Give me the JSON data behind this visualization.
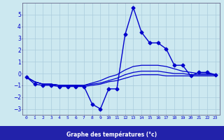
{
  "xlabel": "Graphe des températures (°c)",
  "background_color": "#cce8f0",
  "label_band_color": "#2222aa",
  "label_text_color": "#ffffff",
  "grid_color": "#aaccdd",
  "line_color": "#0000cc",
  "xlim": [
    -0.5,
    23.5
  ],
  "ylim": [
    -3.5,
    6.0
  ],
  "xticks": [
    0,
    1,
    2,
    3,
    4,
    5,
    6,
    7,
    8,
    9,
    10,
    11,
    12,
    13,
    14,
    15,
    16,
    17,
    18,
    19,
    20,
    21,
    22,
    23
  ],
  "yticks": [
    -3,
    -2,
    -1,
    0,
    1,
    2,
    3,
    4,
    5
  ],
  "series": [
    {
      "x": [
        0,
        1,
        2,
        3,
        4,
        5,
        6,
        7,
        8,
        9,
        10,
        11,
        12,
        13,
        14,
        15,
        16,
        17,
        18,
        19,
        20,
        21,
        22,
        23
      ],
      "y": [
        -0.3,
        -0.9,
        -1.0,
        -1.0,
        -1.1,
        -1.1,
        -1.1,
        -1.1,
        -2.6,
        -3.0,
        -1.3,
        -1.3,
        3.3,
        5.6,
        3.5,
        2.6,
        2.6,
        2.1,
        0.7,
        0.7,
        -0.2,
        0.1,
        0.1,
        -0.1
      ],
      "marker": "D",
      "markersize": 2.5,
      "linewidth": 1.0
    },
    {
      "x": [
        0,
        1,
        2,
        3,
        4,
        5,
        6,
        7,
        8,
        9,
        10,
        11,
        12,
        13,
        14,
        15,
        16,
        17,
        18,
        19,
        20,
        21,
        22,
        23
      ],
      "y": [
        -0.3,
        -0.7,
        -0.9,
        -0.9,
        -1.0,
        -1.0,
        -1.0,
        -1.0,
        -0.8,
        -0.6,
        -0.3,
        -0.1,
        0.3,
        0.6,
        0.7,
        0.7,
        0.7,
        0.6,
        0.4,
        0.2,
        0.1,
        0.0,
        0.0,
        -0.1
      ],
      "marker": null,
      "markersize": 0,
      "linewidth": 0.9
    },
    {
      "x": [
        0,
        1,
        2,
        3,
        4,
        5,
        6,
        7,
        8,
        9,
        10,
        11,
        12,
        13,
        14,
        15,
        16,
        17,
        18,
        19,
        20,
        21,
        22,
        23
      ],
      "y": [
        -0.3,
        -0.7,
        -0.9,
        -0.9,
        -1.0,
        -1.0,
        -1.0,
        -1.0,
        -0.9,
        -0.8,
        -0.6,
        -0.4,
        -0.1,
        0.1,
        0.2,
        0.2,
        0.2,
        0.1,
        0.0,
        0.0,
        -0.1,
        -0.1,
        -0.1,
        -0.1
      ],
      "marker": null,
      "markersize": 0,
      "linewidth": 0.9
    },
    {
      "x": [
        0,
        1,
        2,
        3,
        4,
        5,
        6,
        7,
        8,
        9,
        10,
        11,
        12,
        13,
        14,
        15,
        16,
        17,
        18,
        19,
        20,
        21,
        22,
        23
      ],
      "y": [
        -0.3,
        -0.7,
        -0.9,
        -0.9,
        -1.0,
        -1.0,
        -1.0,
        -1.1,
        -1.0,
        -0.9,
        -0.7,
        -0.6,
        -0.4,
        -0.2,
        -0.1,
        -0.1,
        -0.1,
        -0.2,
        -0.2,
        -0.2,
        -0.2,
        -0.2,
        -0.2,
        -0.2
      ],
      "marker": null,
      "markersize": 0,
      "linewidth": 0.9
    }
  ]
}
